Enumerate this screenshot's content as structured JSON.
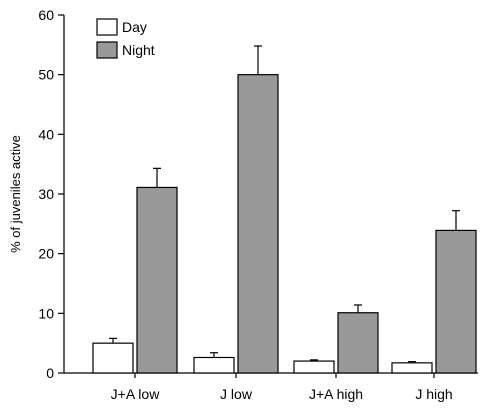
{
  "chart_data": {
    "type": "bar",
    "title": "",
    "xlabel": "",
    "ylabel": "% of juveniles active",
    "ylim": [
      0,
      60
    ],
    "yticks": [
      0,
      10,
      20,
      30,
      40,
      50,
      60
    ],
    "grid": false,
    "legend_position": "top-left",
    "categories": [
      "J+A low",
      "J low",
      "J+A high",
      "J high"
    ],
    "series": [
      {
        "name": "Day",
        "color": "#ffffff",
        "values": [
          5,
          2.6,
          2,
          1.7
        ],
        "errors": [
          0.8,
          0.8,
          0.2,
          0.2
        ]
      },
      {
        "name": "Night",
        "color": "#999999",
        "values": [
          31.1,
          50,
          10.1,
          23.9
        ],
        "errors": [
          3.2,
          4.8,
          1.3,
          3.3
        ]
      }
    ]
  }
}
